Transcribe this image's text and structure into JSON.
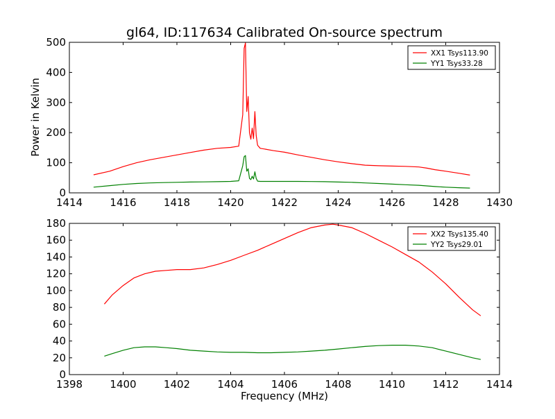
{
  "figure": {
    "title": "gl64, ID:117634 Calibrated On-source spectrum",
    "ylabel": "Power in Kelvin",
    "xlabel": "Frequency (MHz)"
  },
  "chart_data": [
    {
      "type": "line",
      "title": "gl64, ID:117634 Calibrated On-source spectrum",
      "xlabel": "",
      "ylabel": "Power in Kelvin",
      "xlim": [
        1414,
        1430
      ],
      "ylim": [
        0,
        500
      ],
      "xticks": [
        "1414",
        "1416",
        "1418",
        "1420",
        "1422",
        "1424",
        "1426",
        "1428",
        "1430"
      ],
      "yticks": [
        "0",
        "100",
        "200",
        "300",
        "400",
        "500"
      ],
      "legend": "top-right",
      "grid": false,
      "series": [
        {
          "name": "XX1 Tsys113.90",
          "color": "#ff0000",
          "x": [
            1414.9,
            1415.5,
            1416.0,
            1416.5,
            1417.0,
            1417.5,
            1418.0,
            1418.5,
            1419.0,
            1419.5,
            1420.0,
            1420.3,
            1420.45,
            1420.5,
            1420.55,
            1420.6,
            1420.65,
            1420.7,
            1420.75,
            1420.8,
            1420.85,
            1420.9,
            1420.95,
            1421.0,
            1421.1,
            1421.3,
            1421.6,
            1422.0,
            1422.5,
            1423.0,
            1423.5,
            1424.0,
            1424.5,
            1425.0,
            1425.5,
            1426.0,
            1426.5,
            1427.0,
            1427.3,
            1427.6,
            1428.0,
            1428.5,
            1428.9
          ],
          "y": [
            60,
            72,
            87,
            100,
            110,
            118,
            126,
            134,
            142,
            148,
            151,
            155,
            260,
            480,
            498,
            270,
            320,
            200,
            178,
            215,
            180,
            270,
            190,
            158,
            148,
            145,
            140,
            135,
            126,
            118,
            110,
            103,
            97,
            92,
            90,
            89,
            88,
            86,
            82,
            77,
            72,
            65,
            59
          ]
        },
        {
          "name": "YY1 Tsys33.28",
          "color": "#008000",
          "x": [
            1414.9,
            1415.5,
            1416.0,
            1416.5,
            1417.0,
            1417.5,
            1418.0,
            1418.5,
            1419.0,
            1419.5,
            1420.0,
            1420.3,
            1420.45,
            1420.5,
            1420.55,
            1420.6,
            1420.65,
            1420.7,
            1420.75,
            1420.8,
            1420.85,
            1420.9,
            1420.95,
            1421.0,
            1421.1,
            1421.3,
            1421.6,
            1422.0,
            1422.5,
            1423.0,
            1423.5,
            1424.0,
            1424.5,
            1425.0,
            1425.5,
            1426.0,
            1426.5,
            1427.0,
            1427.3,
            1427.6,
            1428.0,
            1428.5,
            1428.9
          ],
          "y": [
            19,
            24,
            28,
            31,
            33,
            34,
            35,
            36,
            36.5,
            37,
            38,
            40,
            90,
            120,
            124,
            72,
            80,
            48,
            44,
            55,
            46,
            70,
            48,
            39,
            38,
            38,
            38,
            38,
            38,
            37.5,
            37,
            36,
            35,
            33,
            31,
            29,
            27,
            25,
            23,
            21,
            19,
            17,
            16
          ]
        }
      ]
    },
    {
      "type": "line",
      "title": "",
      "xlabel": "Frequency (MHz)",
      "ylabel": "",
      "xlim": [
        1398,
        1414
      ],
      "ylim": [
        0,
        180
      ],
      "xticks": [
        "1398",
        "1400",
        "1402",
        "1404",
        "1406",
        "1408",
        "1410",
        "1412",
        "1414"
      ],
      "yticks": [
        "0",
        "20",
        "40",
        "60",
        "80",
        "100",
        "120",
        "140",
        "160",
        "180"
      ],
      "legend": "top-right",
      "grid": false,
      "series": [
        {
          "name": "XX2 Tsys135.40",
          "color": "#ff0000",
          "x": [
            1399.3,
            1399.6,
            1400.0,
            1400.4,
            1400.8,
            1401.2,
            1401.6,
            1402.0,
            1402.5,
            1403.0,
            1403.5,
            1404.0,
            1404.5,
            1405.0,
            1405.5,
            1406.0,
            1406.5,
            1407.0,
            1407.5,
            1407.8,
            1408.0,
            1408.5,
            1409.0,
            1409.5,
            1410.0,
            1410.5,
            1411.0,
            1411.5,
            1412.0,
            1412.5,
            1413.0,
            1413.3
          ],
          "y": [
            84,
            95,
            106,
            115,
            120,
            123,
            124,
            125,
            125,
            127,
            131,
            136,
            142,
            148,
            155,
            162,
            169,
            175,
            178,
            179,
            178,
            175,
            168,
            160,
            152,
            143,
            134,
            122,
            108,
            92,
            77,
            70
          ]
        },
        {
          "name": "YY2 Tsys29.01",
          "color": "#008000",
          "x": [
            1399.3,
            1399.6,
            1400.0,
            1400.4,
            1400.8,
            1401.2,
            1401.6,
            1402.0,
            1402.5,
            1403.0,
            1403.5,
            1404.0,
            1404.5,
            1405.0,
            1405.5,
            1406.0,
            1406.5,
            1407.0,
            1407.5,
            1408.0,
            1408.5,
            1409.0,
            1409.5,
            1410.0,
            1410.5,
            1411.0,
            1411.5,
            1412.0,
            1412.5,
            1413.0,
            1413.3
          ],
          "y": [
            22,
            25,
            29,
            32,
            33,
            33,
            32,
            31,
            29,
            28,
            27,
            26.5,
            26.5,
            26,
            26,
            26.5,
            27,
            28,
            29,
            30.5,
            32,
            33.5,
            34.5,
            35,
            35,
            34,
            32,
            28,
            24,
            20,
            18
          ]
        }
      ]
    }
  ]
}
